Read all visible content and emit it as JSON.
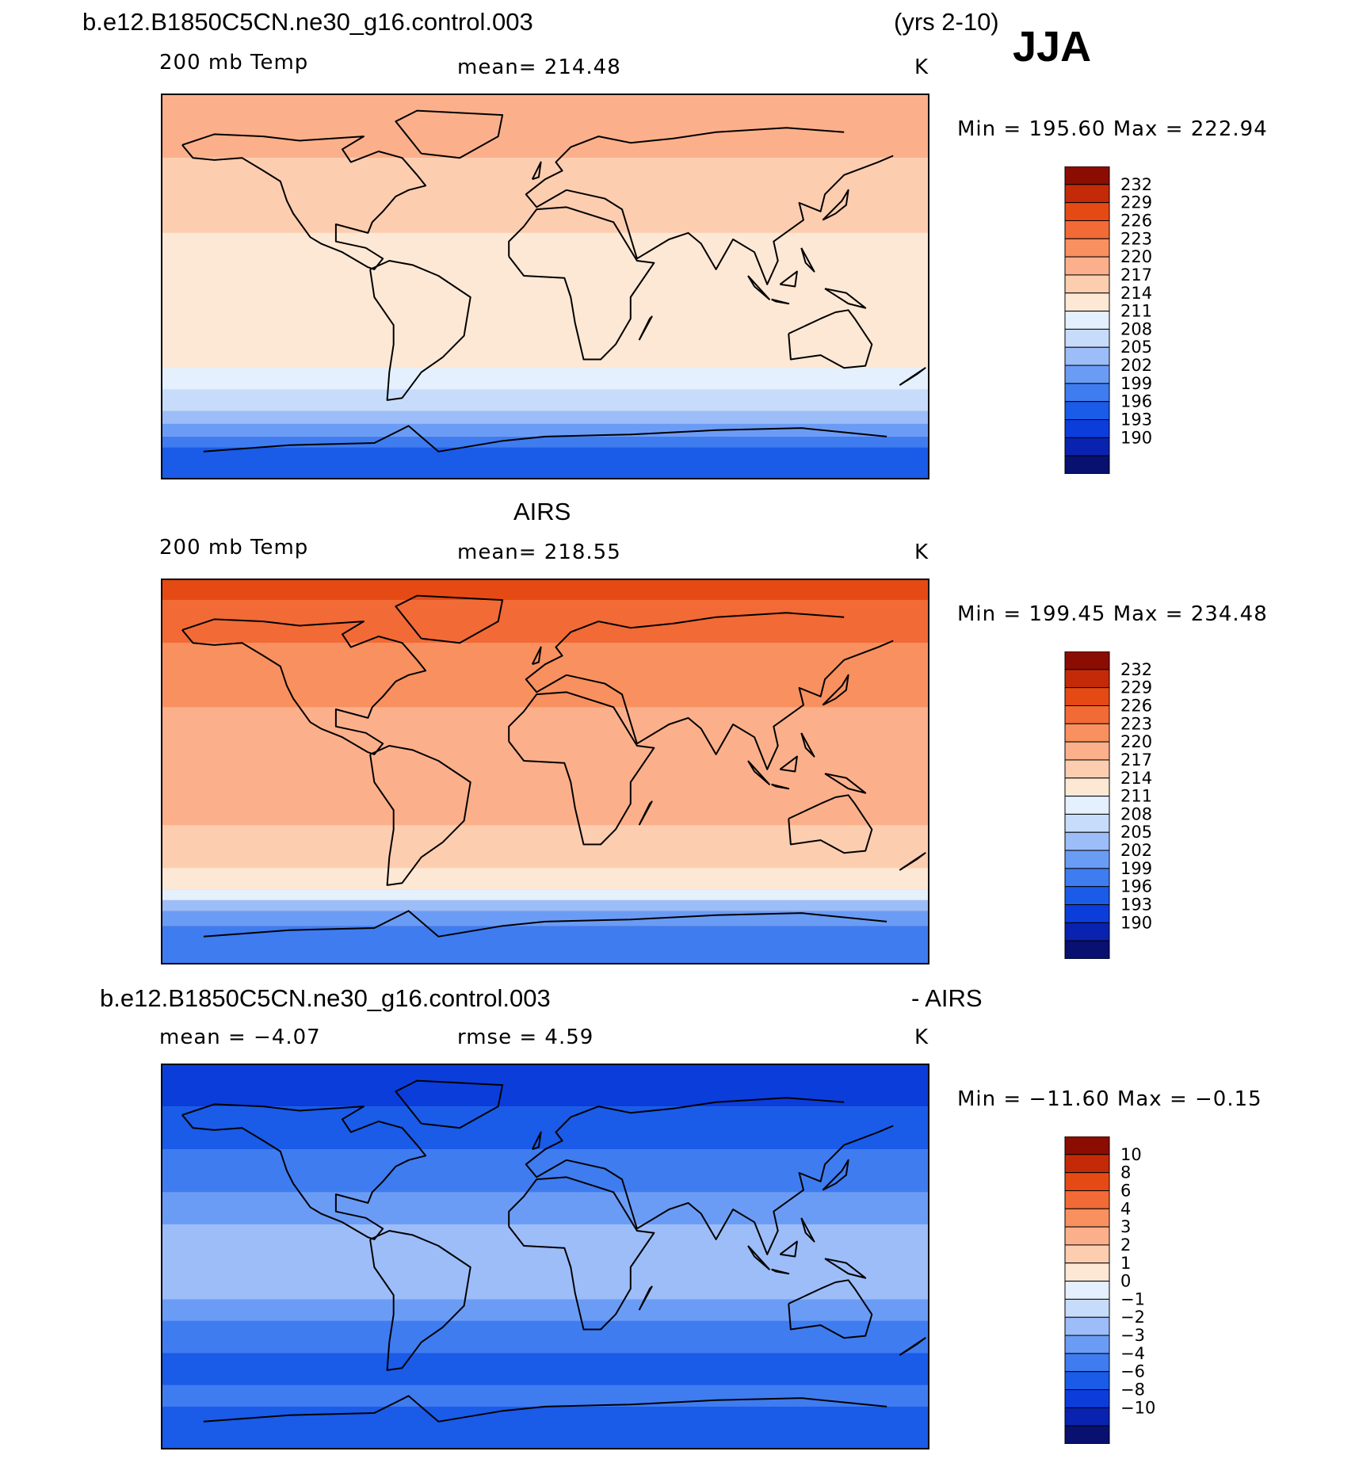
{
  "header": {
    "case_name": "b.e12.B1850C5CN.ne30_g16.control.003",
    "years": "(yrs 2-10)",
    "season": "JJA"
  },
  "panels": [
    {
      "title": "",
      "left_label": "200 mb Temp",
      "center_label": "mean= 214.48",
      "units": "K",
      "minmax": "Min = 195.60 Max = 222.94"
    },
    {
      "title": "AIRS",
      "left_label": "200 mb Temp",
      "center_label": "mean= 218.55",
      "units": "K",
      "minmax": "Min = 199.45 Max = 234.48"
    },
    {
      "title_left": "b.e12.B1850C5CN.ne30_g16.control.003",
      "title_right": "- AIRS",
      "left_label": "mean =  −4.07",
      "center_label": "rmse =    4.59",
      "units": "K",
      "minmax": "Min = −11.60 Max =  −0.15"
    }
  ],
  "chart_data": [
    {
      "type": "heatmap",
      "title": "200 mb Temp",
      "variable": "200 mb Temp",
      "units": "K",
      "mean": 214.48,
      "min": 195.6,
      "max": 222.94,
      "projection": "cylindrical equidistant, centered 180°",
      "contour_levels": [
        190,
        193,
        196,
        199,
        202,
        205,
        208,
        211,
        214,
        217,
        220,
        223,
        226,
        229,
        232
      ],
      "palette": [
        "#08116f",
        "#0a22b0",
        "#0b3ddb",
        "#1a5be8",
        "#3f7cf0",
        "#6b9cf5",
        "#9dbdf8",
        "#c7dcfb",
        "#e4f0fd",
        "#fde8d5",
        "#fdcdb0",
        "#fbb08b",
        "#f8905f",
        "#f26a36",
        "#e64a14",
        "#c42a08",
        "#8b0d02"
      ],
      "zonal_bands": [
        {
          "lat": [
            60,
            90
          ],
          "level": 220
        },
        {
          "lat": [
            25,
            60
          ],
          "level": 217
        },
        {
          "lat": [
            -25,
            25
          ],
          "level": 214
        },
        {
          "lat": [
            -38,
            -25
          ],
          "level": 214
        },
        {
          "lat": [
            -48,
            -38
          ],
          "level": 211
        },
        {
          "lat": [
            -58,
            -48
          ],
          "level": 208
        },
        {
          "lat": [
            -64,
            -58
          ],
          "level": 205
        },
        {
          "lat": [
            -70,
            -64
          ],
          "level": 202
        },
        {
          "lat": [
            -75,
            -70
          ],
          "level": 199
        },
        {
          "lat": [
            -90,
            -75
          ],
          "level": 196
        }
      ]
    },
    {
      "type": "heatmap",
      "title": "AIRS",
      "variable": "200 mb Temp",
      "units": "K",
      "mean": 218.55,
      "min": 199.45,
      "max": 234.48,
      "projection": "cylindrical equidistant, centered 180°",
      "contour_levels": [
        190,
        193,
        196,
        199,
        202,
        205,
        208,
        211,
        214,
        217,
        220,
        223,
        226,
        229,
        232
      ],
      "palette": [
        "#08116f",
        "#0a22b0",
        "#0b3ddb",
        "#1a5be8",
        "#3f7cf0",
        "#6b9cf5",
        "#9dbdf8",
        "#c7dcfb",
        "#e4f0fd",
        "#fde8d5",
        "#fdcdb0",
        "#fbb08b",
        "#f8905f",
        "#f26a36",
        "#e64a14",
        "#c42a08",
        "#8b0d02"
      ],
      "zonal_bands": [
        {
          "lat": [
            80,
            90
          ],
          "level": 229
        },
        {
          "lat": [
            60,
            80
          ],
          "level": 226
        },
        {
          "lat": [
            30,
            60
          ],
          "level": 223
        },
        {
          "lat": [
            -25,
            30
          ],
          "level": 220
        },
        {
          "lat": [
            -45,
            -25
          ],
          "level": 217
        },
        {
          "lat": [
            -55,
            -45
          ],
          "level": 214
        },
        {
          "lat": [
            -60,
            -55
          ],
          "level": 211
        },
        {
          "lat": [
            -65,
            -60
          ],
          "level": 205
        },
        {
          "lat": [
            -72,
            -65
          ],
          "level": 202
        },
        {
          "lat": [
            -90,
            -72
          ],
          "level": 199
        }
      ]
    },
    {
      "type": "heatmap",
      "title": "b.e12.B1850C5CN.ne30_g16.control.003 - AIRS",
      "variable": "200 mb Temp difference",
      "units": "K",
      "mean": -4.07,
      "rmse": 4.59,
      "min": -11.6,
      "max": -0.15,
      "projection": "cylindrical equidistant, centered 180°",
      "contour_levels": [
        -10,
        -8,
        -6,
        -4,
        -3,
        -2,
        -1,
        0,
        1,
        2,
        3,
        4,
        6,
        8,
        10
      ],
      "palette": [
        "#08116f",
        "#0a22b0",
        "#0b3ddb",
        "#1a5be8",
        "#3f7cf0",
        "#6b9cf5",
        "#9dbdf8",
        "#c7dcfb",
        "#e4f0fd",
        "#fde8d5",
        "#fdcdb0",
        "#fbb08b",
        "#f8905f",
        "#f26a36",
        "#e64a14",
        "#c42a08",
        "#8b0d02"
      ],
      "zonal_bands": [
        {
          "lat": [
            70,
            90
          ],
          "level": -8
        },
        {
          "lat": [
            50,
            70
          ],
          "level": -6
        },
        {
          "lat": [
            30,
            50
          ],
          "level": -4
        },
        {
          "lat": [
            15,
            30
          ],
          "level": -3
        },
        {
          "lat": [
            -20,
            15
          ],
          "level": -2
        },
        {
          "lat": [
            -30,
            -20
          ],
          "level": -3
        },
        {
          "lat": [
            -45,
            -30
          ],
          "level": -4
        },
        {
          "lat": [
            -60,
            -45
          ],
          "level": -6
        },
        {
          "lat": [
            -70,
            -60
          ],
          "level": -4
        },
        {
          "lat": [
            -90,
            -70
          ],
          "level": -6
        }
      ]
    }
  ]
}
